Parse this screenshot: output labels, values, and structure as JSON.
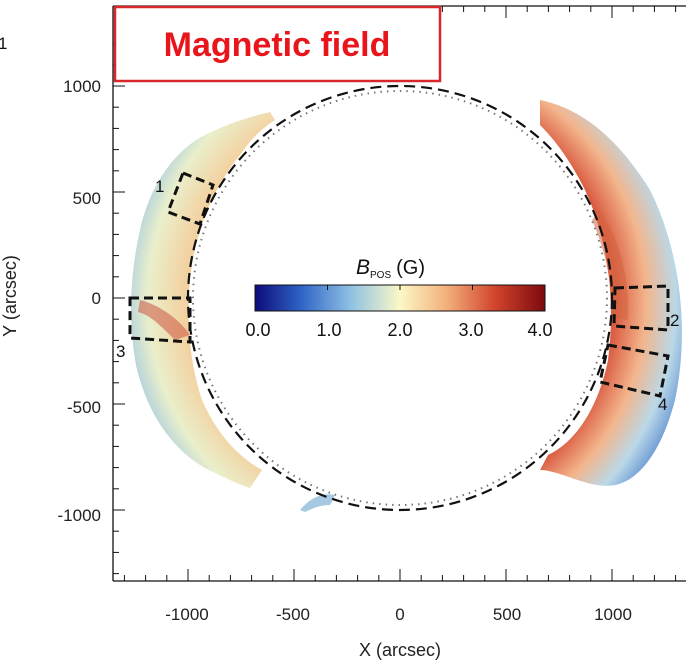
{
  "colors": {
    "title_red": "#e8151b",
    "title_border": "#d8262b",
    "colormap": [
      "#0c0c7a",
      "#2f64c6",
      "#8fc1e3",
      "#fbf8c6",
      "#f3b07c",
      "#d0432c",
      "#7d0a0d"
    ]
  },
  "chart_data": {
    "type": "heatmap",
    "title": "Magnetic field",
    "xlabel": "X (arcsec)",
    "ylabel": "Y (arcsec)",
    "xlim": [
      -1350,
      1350
    ],
    "ylim": [
      -1350,
      1250
    ],
    "xticks": [
      -1000,
      -500,
      0,
      500,
      1000
    ],
    "yticks": [
      1000,
      500,
      0,
      -500,
      -1000
    ],
    "grid": false,
    "colorbar": {
      "label": "B",
      "subscript": "POS",
      "unit": "(G)",
      "ticks": [
        "0.0",
        "1.0",
        "2.0",
        "3.0",
        "4.0"
      ],
      "range": [
        0.0,
        4.0
      ]
    },
    "regions": [
      "1",
      "2",
      "3",
      "4"
    ],
    "edge_labels": [
      "1"
    ]
  }
}
